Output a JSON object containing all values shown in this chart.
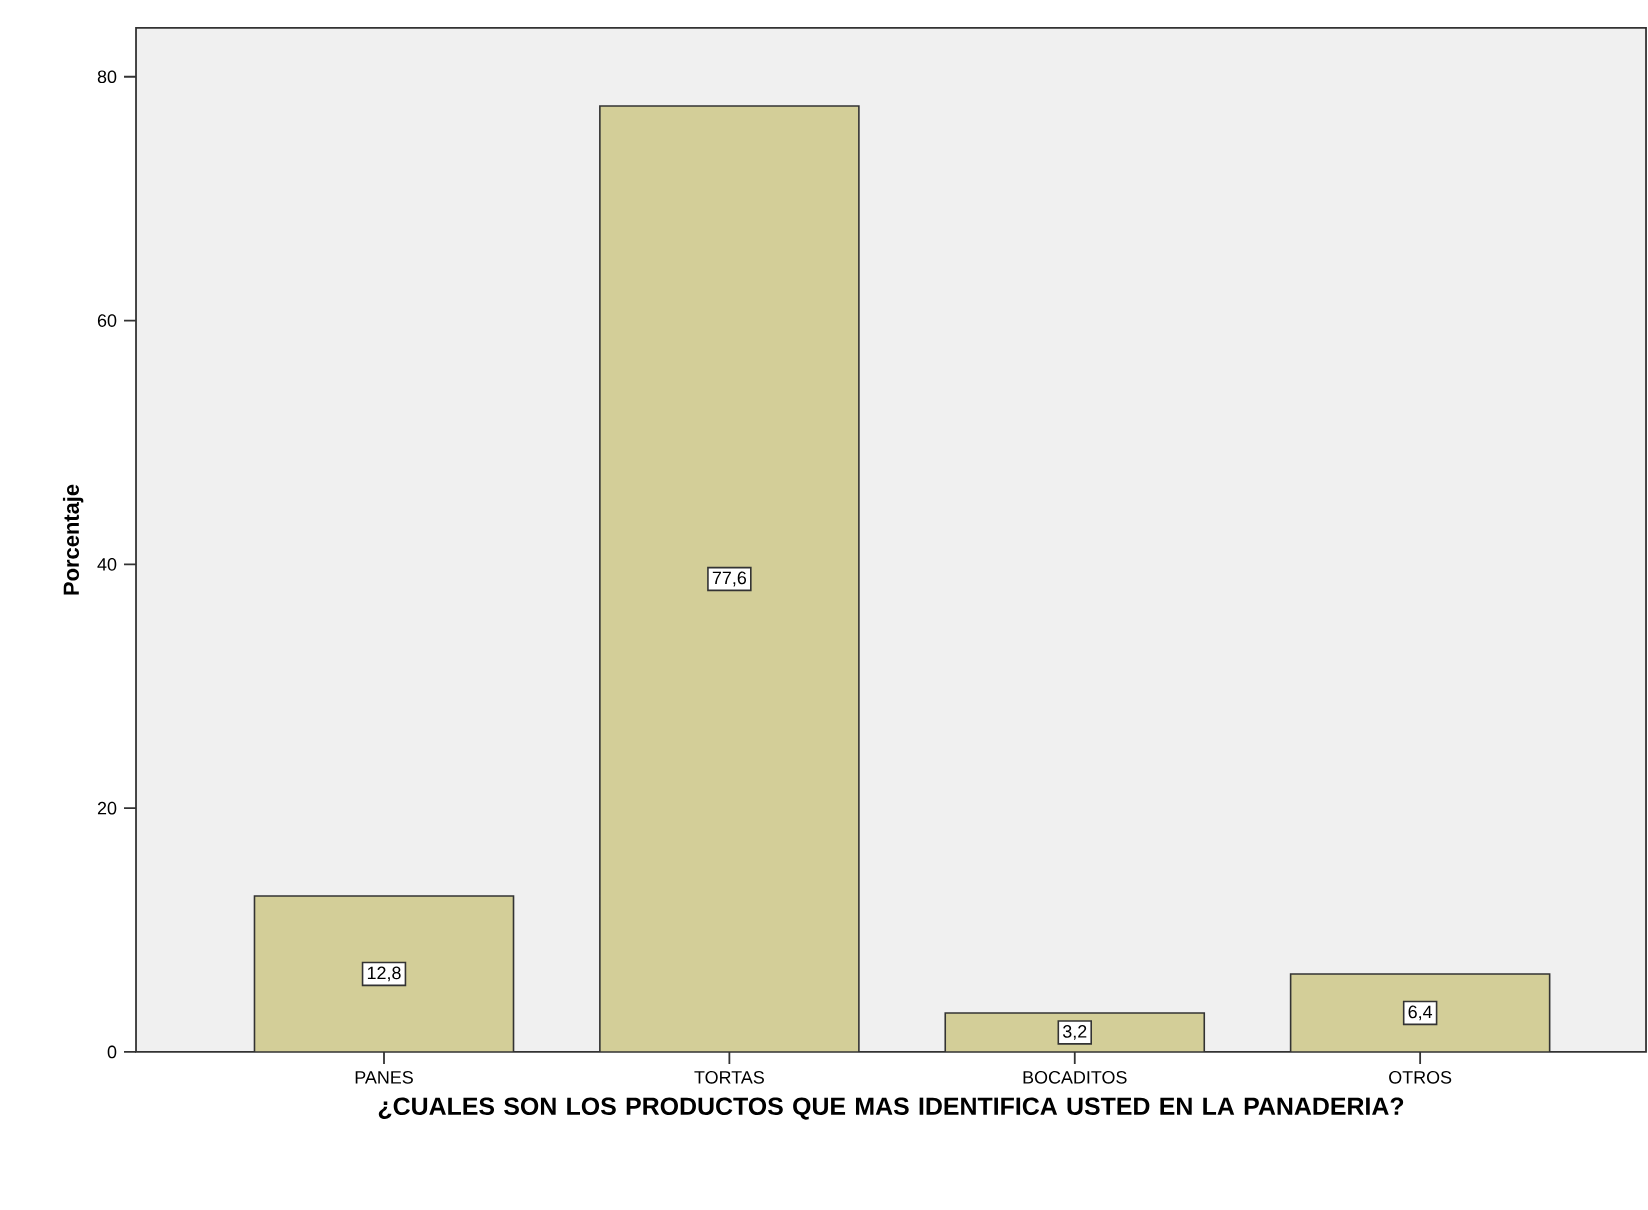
{
  "chart_data": {
    "type": "bar",
    "xlabel": "¿CUALES SON LOS PRODUCTOS QUE MAS IDENTIFICA USTED EN LA PANADERIA?",
    "ylabel": "Porcentaje",
    "categories": [
      "PANES",
      "TORTAS",
      "BOCADITOS",
      "OTROS"
    ],
    "values": [
      12.8,
      77.6,
      3.2,
      6.4
    ],
    "value_labels": [
      "12,8",
      "77,6",
      "3,2",
      "6,4"
    ],
    "color": "#d3ce98",
    "ylim": [
      0,
      84
    ],
    "yticks": [
      0,
      20,
      40,
      60,
      80
    ]
  }
}
